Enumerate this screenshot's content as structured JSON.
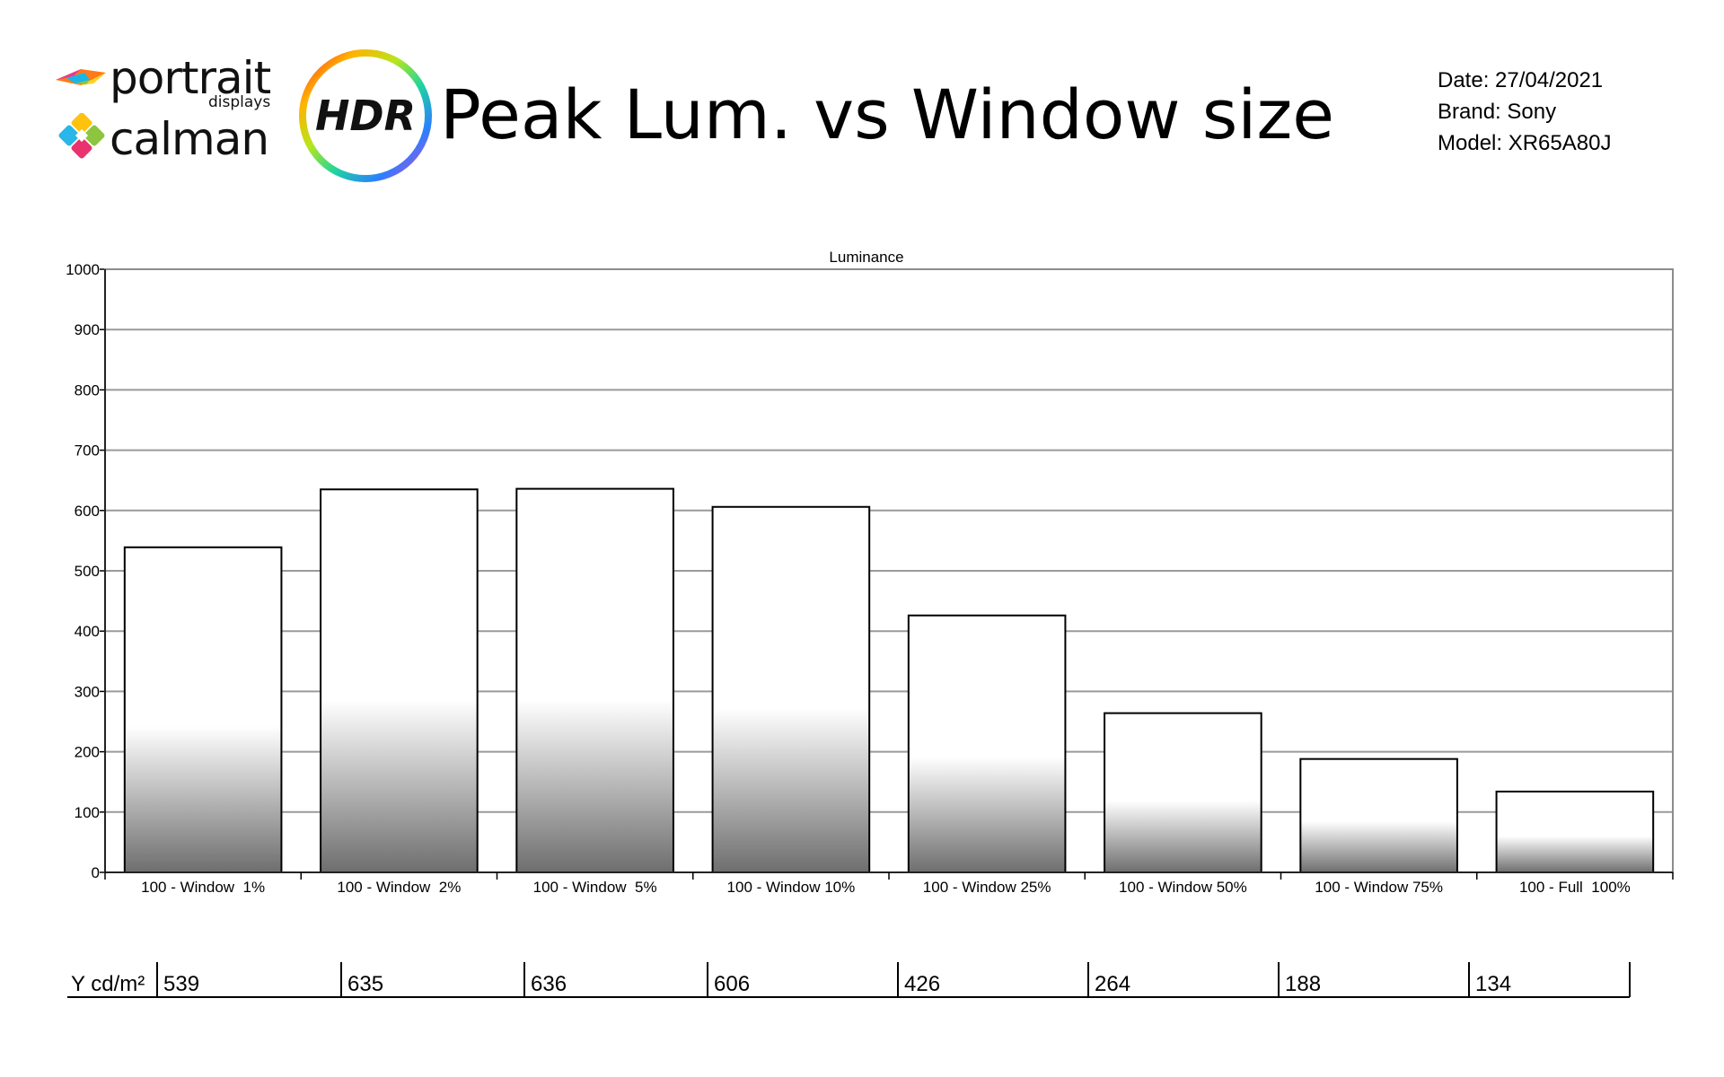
{
  "header": {
    "brand_portrait": "portrait",
    "brand_displays": "displays",
    "brand_calman": "calman",
    "hdr_badge": "HDR",
    "title": "Peak Lum. vs Window size",
    "date_line": "Date: 27/04/2021",
    "brand_line": "Brand: Sony",
    "model_line": "Model: XR65A80J"
  },
  "chart_data": {
    "type": "bar",
    "title": "Luminance",
    "categories": [
      "100 - Window  1%",
      "100 - Window  2%",
      "100 - Window  5%",
      "100 - Window 10%",
      "100 - Window 25%",
      "100 - Window 50%",
      "100 - Window 75%",
      "100 - Full  100%"
    ],
    "series": [
      {
        "values": [
          539,
          635,
          636,
          606,
          426,
          264,
          188,
          134
        ]
      }
    ],
    "ylim": [
      0,
      1000
    ],
    "yticks": [
      0,
      100,
      200,
      300,
      400,
      500,
      600,
      700,
      800,
      900,
      1000
    ],
    "grid": true,
    "bar_fill": "gradient white-to-gray",
    "value_table": {
      "label": "Y cd/m²",
      "values": [
        "539",
        "635",
        "636",
        "606",
        "426",
        "264",
        "188",
        "134"
      ]
    }
  }
}
